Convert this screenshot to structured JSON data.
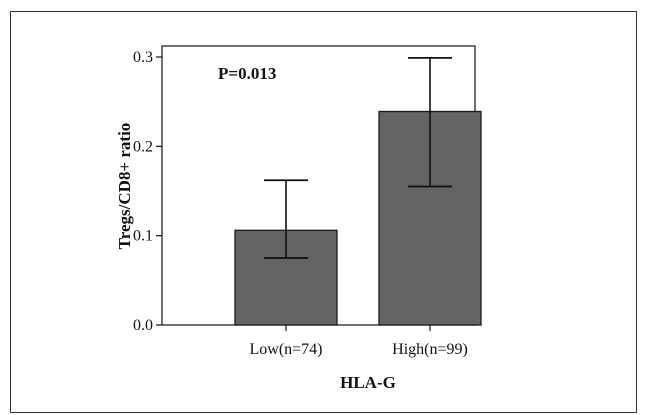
{
  "chart_data": {
    "type": "bar",
    "categories": [
      "Low(n=74)",
      "High(n=99)"
    ],
    "values": [
      0.106,
      0.239
    ],
    "error_bars": [
      {
        "lower": 0.075,
        "upper": 0.162
      },
      {
        "lower": 0.155,
        "upper": 0.299
      }
    ],
    "title": "",
    "xlabel": "HLA-G",
    "ylabel": "Tregs/CD8+ ratio",
    "ylim": [
      0,
      0.3
    ],
    "yticks": [
      0.0,
      0.1,
      0.2,
      0.3
    ],
    "ytick_labels": [
      "0.0",
      "0.1",
      "0.2",
      "0.3"
    ],
    "grid": false,
    "annotations": [
      "P=0.013"
    ],
    "colors": {
      "bar_fill": "#646464",
      "bar_stroke": "#1a1a1a",
      "axis": "#111111"
    }
  }
}
